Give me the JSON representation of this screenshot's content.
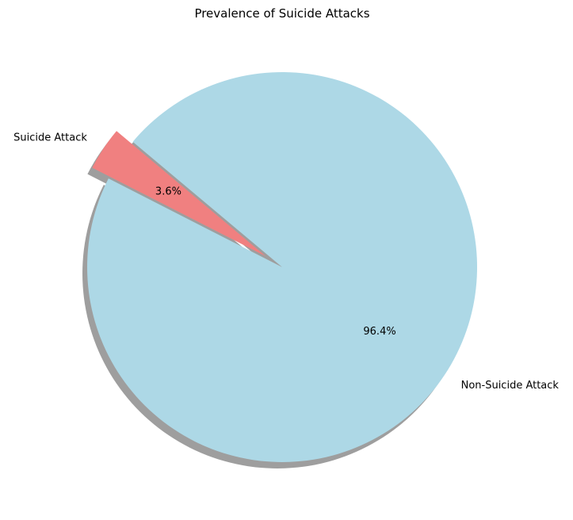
{
  "chart_data": {
    "type": "pie",
    "title": "Prevalence of Suicide Attacks",
    "categories": [
      "Suicide Attack",
      "Non-Suicide Attack"
    ],
    "values": [
      3.6,
      96.4
    ],
    "value_labels": [
      "3.6%",
      "96.4%"
    ],
    "colors": [
      "#f08080",
      "#add8e6"
    ],
    "exploded": [
      true,
      false
    ],
    "shadow": true,
    "start_angle_deg": 140,
    "legend": "none"
  }
}
